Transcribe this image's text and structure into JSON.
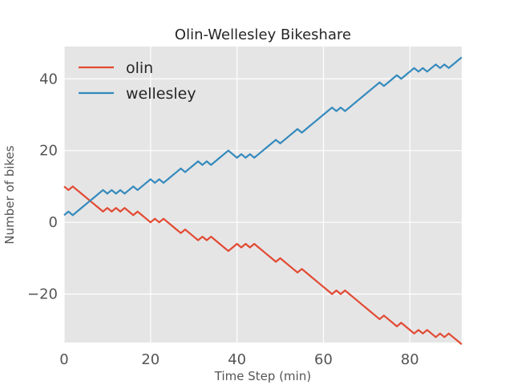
{
  "chart_data": {
    "type": "line",
    "title": "Olin-Wellesley Bikeshare",
    "xlabel": "Time Step (min)",
    "ylabel": "Number of bikes",
    "xlim": [
      0,
      92
    ],
    "ylim": [
      -33.5,
      49
    ],
    "grid": true,
    "legend_position": "top-left",
    "x_ticks": [
      0,
      20,
      40,
      60,
      80
    ],
    "x_tick_labels": [
      "0",
      "20",
      "40",
      "60",
      "80"
    ],
    "y_ticks": [
      -20,
      0,
      20,
      40
    ],
    "y_tick_labels": [
      "−20",
      "0",
      "20",
      "40"
    ],
    "colors": {
      "background": "#e5e5e5",
      "grid": "#ffffff",
      "olin": "#e24a33",
      "wellesley": "#348abd"
    },
    "series": [
      {
        "name": "olin",
        "color": "#e24a33",
        "x": [
          0,
          1,
          2,
          3,
          4,
          5,
          6,
          7,
          8,
          9,
          10,
          11,
          12,
          13,
          14,
          15,
          16,
          17,
          18,
          19,
          20,
          21,
          22,
          23,
          24,
          25,
          26,
          27,
          28,
          29,
          30,
          31,
          32,
          33,
          34,
          35,
          36,
          37,
          38,
          39,
          40,
          41,
          42,
          43,
          44,
          45,
          46,
          47,
          48,
          49,
          50,
          51,
          52,
          53,
          54,
          55,
          56,
          57,
          58,
          59,
          60,
          61,
          62,
          63,
          64,
          65,
          66,
          67,
          68,
          69,
          70,
          71,
          72,
          73,
          74,
          75,
          76,
          77,
          78,
          79,
          80,
          81,
          82,
          83,
          84,
          85,
          86,
          87,
          88,
          89,
          90,
          91,
          92
        ],
        "values": [
          10,
          9,
          10,
          9,
          8,
          7,
          6,
          5,
          4,
          3,
          4,
          3,
          4,
          3,
          4,
          3,
          2,
          3,
          2,
          1,
          0,
          1,
          0,
          1,
          0,
          -1,
          -2,
          -3,
          -2,
          -3,
          -4,
          -5,
          -4,
          -5,
          -4,
          -5,
          -6,
          -7,
          -8,
          -7,
          -6,
          -7,
          -6,
          -7,
          -6,
          -7,
          -8,
          -9,
          -10,
          -11,
          -10,
          -11,
          -12,
          -13,
          -14,
          -13,
          -14,
          -15,
          -16,
          -17,
          -18,
          -19,
          -20,
          -19,
          -20,
          -19,
          -20,
          -21,
          -22,
          -23,
          -24,
          -25,
          -26,
          -27,
          -26,
          -27,
          -28,
          -29,
          -28,
          -29,
          -30,
          -31,
          -30,
          -31,
          -30,
          -31,
          -32,
          -31,
          -32,
          -31,
          -32,
          -33,
          -34
        ]
      },
      {
        "name": "wellesley",
        "color": "#348abd",
        "x": [
          0,
          1,
          2,
          3,
          4,
          5,
          6,
          7,
          8,
          9,
          10,
          11,
          12,
          13,
          14,
          15,
          16,
          17,
          18,
          19,
          20,
          21,
          22,
          23,
          24,
          25,
          26,
          27,
          28,
          29,
          30,
          31,
          32,
          33,
          34,
          35,
          36,
          37,
          38,
          39,
          40,
          41,
          42,
          43,
          44,
          45,
          46,
          47,
          48,
          49,
          50,
          51,
          52,
          53,
          54,
          55,
          56,
          57,
          58,
          59,
          60,
          61,
          62,
          63,
          64,
          65,
          66,
          67,
          68,
          69,
          70,
          71,
          72,
          73,
          74,
          75,
          76,
          77,
          78,
          79,
          80,
          81,
          82,
          83,
          84,
          85,
          86,
          87,
          88,
          89,
          90,
          91,
          92
        ],
        "values": [
          2,
          3,
          2,
          3,
          4,
          5,
          6,
          7,
          8,
          9,
          8,
          9,
          8,
          9,
          8,
          9,
          10,
          9,
          10,
          11,
          12,
          11,
          12,
          11,
          12,
          13,
          14,
          15,
          14,
          15,
          16,
          17,
          16,
          17,
          16,
          17,
          18,
          19,
          20,
          19,
          18,
          19,
          18,
          19,
          18,
          19,
          20,
          21,
          22,
          23,
          22,
          23,
          24,
          25,
          26,
          25,
          26,
          27,
          28,
          29,
          30,
          31,
          32,
          31,
          32,
          31,
          32,
          33,
          34,
          35,
          36,
          37,
          38,
          39,
          38,
          39,
          40,
          41,
          40,
          41,
          42,
          43,
          42,
          43,
          42,
          43,
          44,
          43,
          44,
          43,
          44,
          45,
          46
        ]
      }
    ]
  }
}
